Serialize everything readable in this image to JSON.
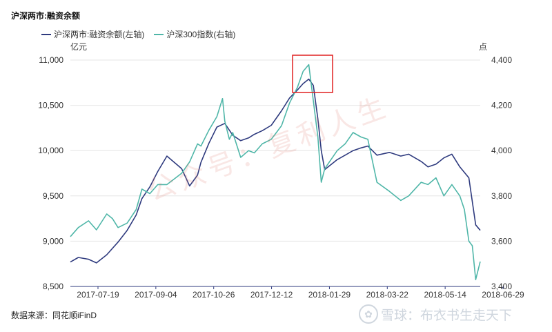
{
  "chart_data": {
    "type": "line",
    "title": "沪深两市:融资余额",
    "left_unit": "亿元",
    "right_unit": "点",
    "x_ticks": [
      "2017-07-19",
      "2017-09-04",
      "2017-10-26",
      "2017-12-12",
      "2018-01-29",
      "2018-03-22",
      "2018-05-14",
      "2018-06-29"
    ],
    "y_left": {
      "ticks": [
        "8,500",
        "9,000",
        "9,500",
        "10,000",
        "10,500",
        "11,000"
      ],
      "range": [
        8500,
        11000
      ]
    },
    "y_right": {
      "ticks": [
        "3,400",
        "3,600",
        "3,800",
        "4,000",
        "4,200",
        "4,400"
      ],
      "range": [
        3400,
        4400
      ]
    },
    "grid": "horizontal",
    "legend_position": "top-left",
    "series": [
      {
        "name": "沪深两市:融资余额(左轴)",
        "axis": "left",
        "color": "#2e3a7e",
        "x": [
          "2017-07-03",
          "2017-07-10",
          "2017-07-19",
          "2017-07-26",
          "2017-08-04",
          "2017-08-14",
          "2017-08-22",
          "2017-08-30",
          "2017-09-04",
          "2017-09-11",
          "2017-09-18",
          "2017-09-26",
          "2017-10-09",
          "2017-10-16",
          "2017-10-23",
          "2017-10-26",
          "2017-11-02",
          "2017-11-09",
          "2017-11-16",
          "2017-11-23",
          "2017-11-30",
          "2017-12-07",
          "2017-12-12",
          "2017-12-19",
          "2017-12-27",
          "2018-01-05",
          "2018-01-12",
          "2018-01-19",
          "2018-01-24",
          "2018-01-29",
          "2018-02-02",
          "2018-02-06",
          "2018-02-09",
          "2018-02-12",
          "2018-02-23",
          "2018-03-02",
          "2018-03-09",
          "2018-03-16",
          "2018-03-22",
          "2018-03-30",
          "2018-04-10",
          "2018-04-20",
          "2018-04-27",
          "2018-05-08",
          "2018-05-14",
          "2018-05-21",
          "2018-05-28",
          "2018-06-04",
          "2018-06-11",
          "2018-06-19",
          "2018-06-25",
          "2018-06-29"
        ],
        "values": [
          8770,
          8820,
          8800,
          8760,
          8850,
          8990,
          9120,
          9290,
          9470,
          9600,
          9770,
          9940,
          9800,
          9610,
          9730,
          9870,
          10080,
          10260,
          10300,
          10170,
          10110,
          10140,
          10180,
          10220,
          10280,
          10440,
          10580,
          10670,
          10740,
          10790,
          10720,
          10350,
          10000,
          9790,
          9900,
          9950,
          10000,
          10030,
          10050,
          9950,
          9980,
          9940,
          9960,
          9880,
          9820,
          9850,
          9920,
          9960,
          9820,
          9700,
          9180,
          9120
        ]
      },
      {
        "name": "沪深300指数(右轴)",
        "axis": "right",
        "color": "#4fb6a8",
        "x": [
          "2017-07-03",
          "2017-07-10",
          "2017-07-19",
          "2017-07-26",
          "2017-08-04",
          "2017-08-09",
          "2017-08-14",
          "2017-08-22",
          "2017-08-30",
          "2017-09-04",
          "2017-09-11",
          "2017-09-18",
          "2017-09-26",
          "2017-10-09",
          "2017-10-16",
          "2017-10-23",
          "2017-10-26",
          "2017-11-02",
          "2017-11-09",
          "2017-11-14",
          "2017-11-16",
          "2017-11-20",
          "2017-11-23",
          "2017-11-30",
          "2017-12-07",
          "2017-12-12",
          "2017-12-19",
          "2017-12-27",
          "2018-01-05",
          "2018-01-12",
          "2018-01-19",
          "2018-01-24",
          "2018-01-29",
          "2018-02-02",
          "2018-02-06",
          "2018-02-09",
          "2018-02-12",
          "2018-02-23",
          "2018-03-02",
          "2018-03-09",
          "2018-03-16",
          "2018-03-22",
          "2018-03-30",
          "2018-04-10",
          "2018-04-20",
          "2018-04-27",
          "2018-05-08",
          "2018-05-14",
          "2018-05-21",
          "2018-05-28",
          "2018-06-04",
          "2018-06-11",
          "2018-06-15",
          "2018-06-19",
          "2018-06-22",
          "2018-06-25",
          "2018-06-29"
        ],
        "values": [
          3620,
          3660,
          3690,
          3650,
          3720,
          3700,
          3660,
          3680,
          3740,
          3830,
          3810,
          3850,
          3850,
          3900,
          3950,
          4030,
          4020,
          4090,
          4150,
          4230,
          4130,
          4050,
          4080,
          3970,
          4000,
          3990,
          4030,
          4050,
          4110,
          4210,
          4280,
          4350,
          4380,
          4220,
          4060,
          3860,
          3920,
          4000,
          4030,
          4080,
          4060,
          4050,
          3860,
          3820,
          3780,
          3800,
          3860,
          3850,
          3880,
          3800,
          3850,
          3800,
          3740,
          3600,
          3580,
          3430,
          3510
        ]
      }
    ],
    "annotations": [
      "公众号：复利人生"
    ]
  },
  "source_text": "数据来源：同花顺iFinD",
  "watermark_text": "雪球：布衣书生走天下",
  "watermark_logo_glyph": "✿"
}
